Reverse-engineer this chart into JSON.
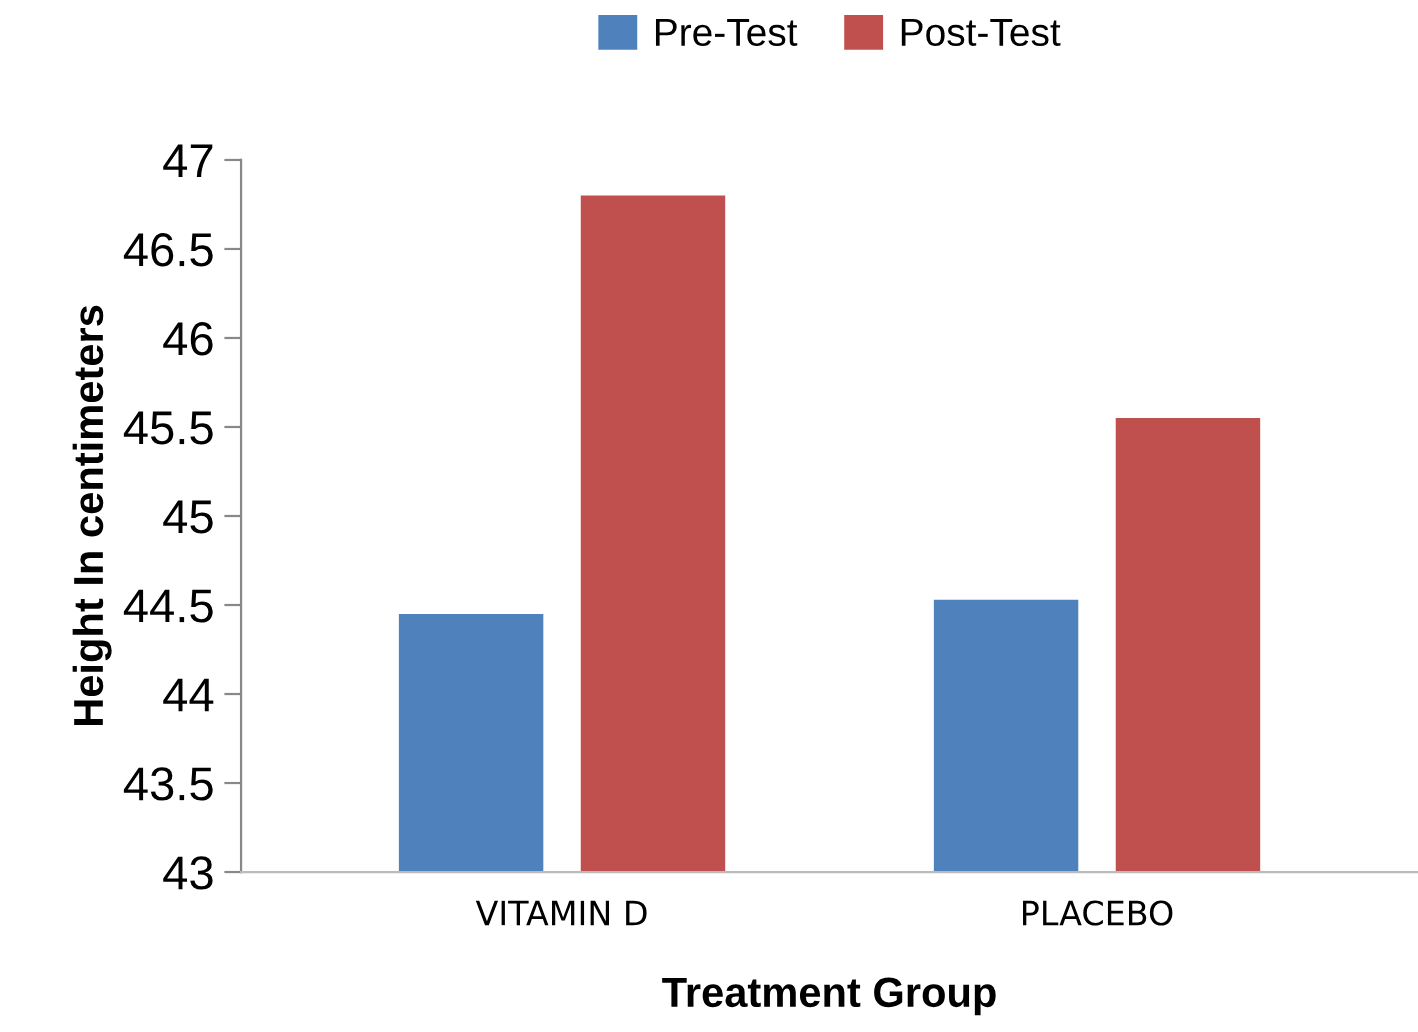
{
  "chart_data": {
    "type": "bar",
    "xlabel": "Treatment Group",
    "ylabel": "Height In centimeters",
    "categories": [
      "VITAMIN D",
      "PLACEBO"
    ],
    "series": [
      {
        "name": "Pre-Test",
        "color": "#4f81bd",
        "values": [
          44.45,
          44.53
        ]
      },
      {
        "name": "Post-Test",
        "color": "#c0504d",
        "values": [
          46.8,
          45.55
        ]
      }
    ],
    "ylim": [
      43,
      47
    ],
    "yticks": [
      43,
      43.5,
      44,
      44.5,
      45,
      45.5,
      46,
      46.5,
      47
    ],
    "grid": false,
    "legend": "top"
  }
}
